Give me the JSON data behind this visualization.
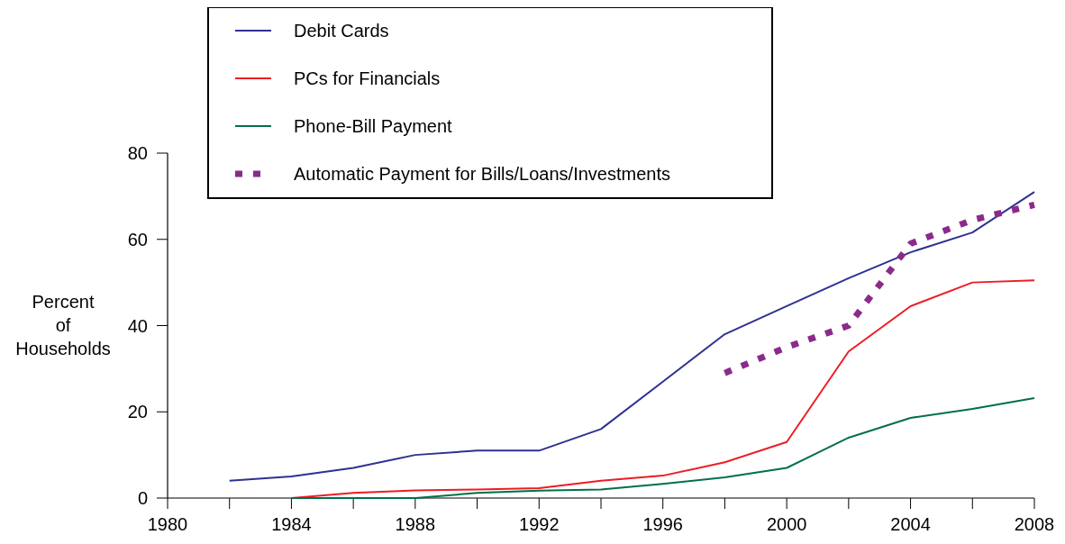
{
  "chart_data": {
    "type": "line",
    "ylabel": "Percent of Households",
    "x": [
      1982,
      1984,
      1986,
      1988,
      1990,
      1992,
      1994,
      1996,
      1998,
      2000,
      2002,
      2004,
      2006,
      2008
    ],
    "xlim": [
      1980,
      2008
    ],
    "xticks": [
      1980,
      {
        "value": 1982,
        "label": null
      },
      1984,
      {
        "value": 1986,
        "label": null
      },
      1988,
      {
        "value": 1990,
        "label": null
      },
      1992,
      {
        "value": 1994,
        "label": null
      },
      1996,
      {
        "value": 1998,
        "label": null
      },
      2000,
      {
        "value": 2002,
        "label": null
      },
      2004,
      {
        "value": 2006,
        "label": null
      },
      2008
    ],
    "ylim": [
      0,
      80
    ],
    "yticks": [
      0,
      20,
      40,
      60,
      80
    ],
    "grid": false,
    "legend": "top",
    "series": [
      {
        "name": "Debit Cards",
        "color": "#2e3192",
        "line_style": "solid",
        "values": [
          4,
          5,
          7,
          10,
          11,
          11,
          16,
          27,
          38,
          44.5,
          51,
          57,
          61.6,
          71
        ]
      },
      {
        "name": "PCs for Financials",
        "color": "#ed1c24",
        "line_style": "solid",
        "values": [
          null,
          0,
          1.2,
          1.8,
          2,
          2.3,
          4,
          5.2,
          8.3,
          13,
          34,
          44.5,
          50,
          50.5
        ]
      },
      {
        "name": "Phone-Bill Payment",
        "color": "#00704a",
        "line_style": "solid",
        "values": [
          null,
          0,
          0,
          0,
          1.2,
          1.7,
          2,
          3.3,
          4.8,
          7,
          14,
          18.6,
          20.7,
          23.2
        ]
      },
      {
        "name": "Automatic Payment for Bills/Loans/Investments",
        "color": "#8b2a8b",
        "line_style": "dotted",
        "values": [
          null,
          null,
          null,
          null,
          null,
          null,
          null,
          null,
          29,
          35,
          40,
          59,
          64.5,
          68
        ]
      }
    ]
  }
}
